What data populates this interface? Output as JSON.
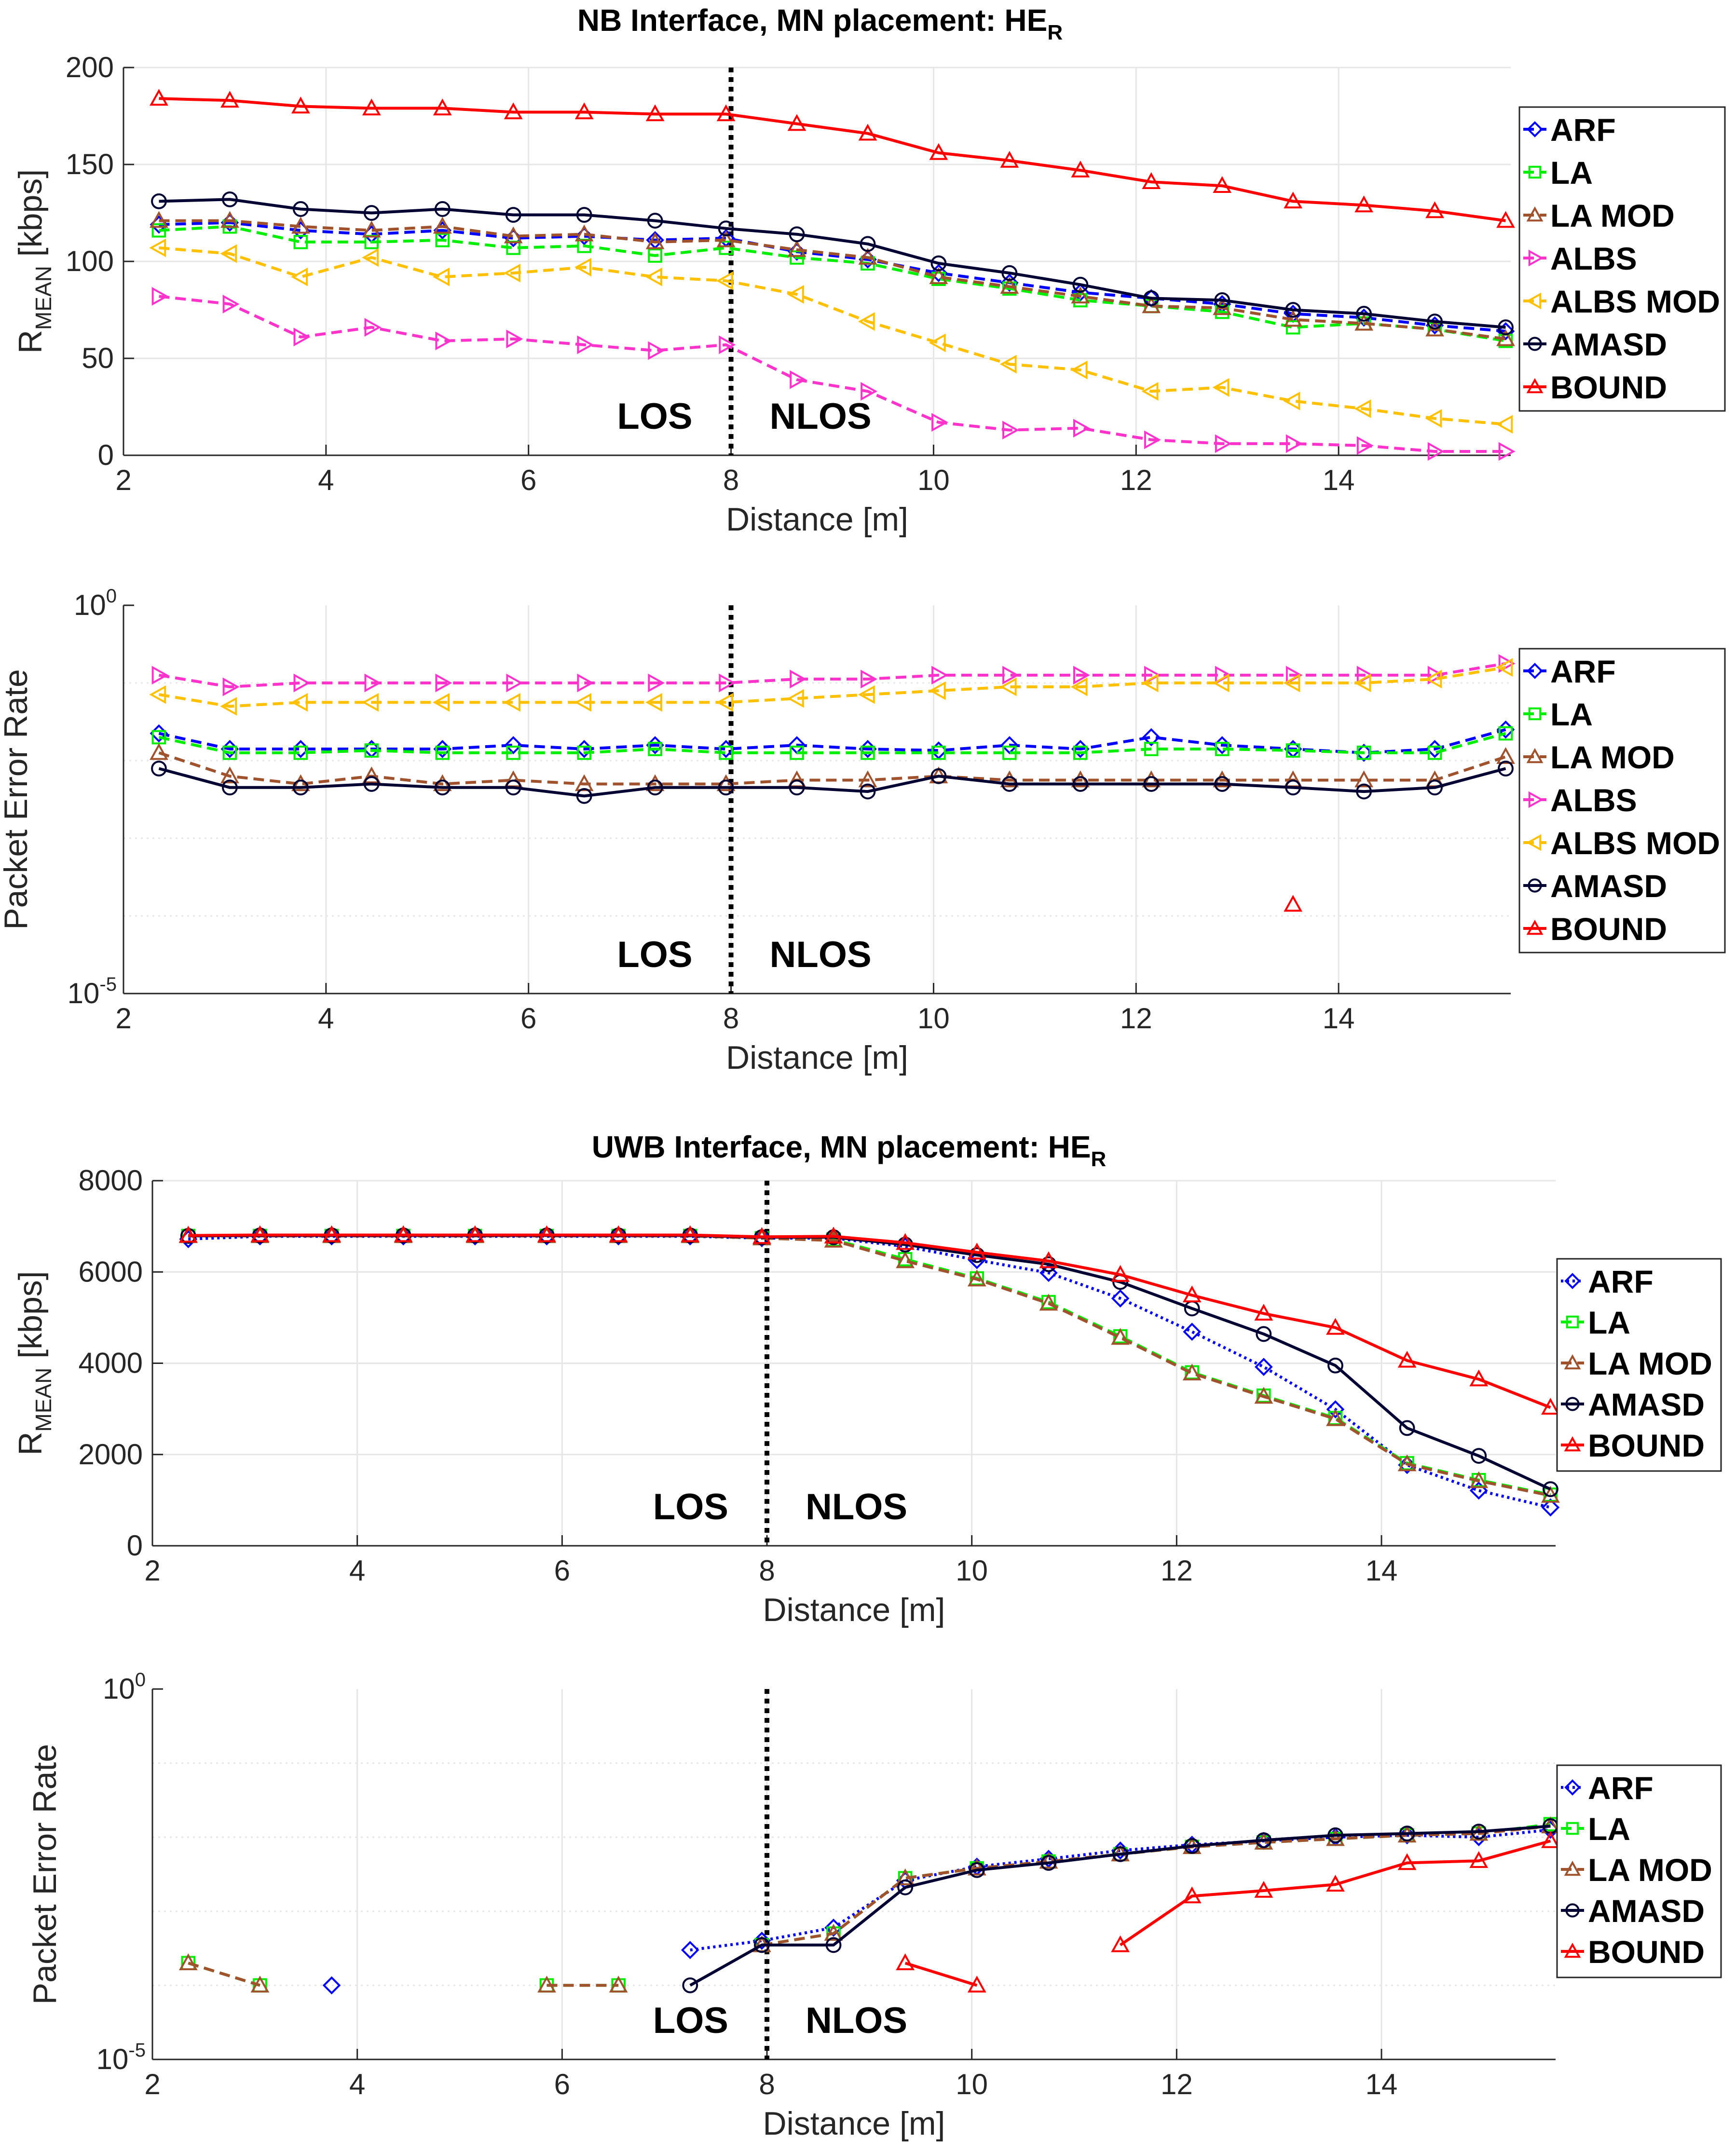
{
  "figure": {
    "nb_title": "NB Interface, MN placement: HE",
    "uwb_title": "UWB Interface, MN placement: HE",
    "title_subscript": "R"
  },
  "chart_data": [
    {
      "id": "nb_rate",
      "type": "line",
      "title": "NB Interface, MN placement: HE_R",
      "xlabel": "Distance [m]",
      "ylabel": "R",
      "ylabel_sub": "MEAN",
      "ylabel_unit": " [kbps]",
      "yscale": "linear",
      "xlim": [
        2,
        15.7
      ],
      "ylim": [
        0,
        200
      ],
      "xticks": [
        2,
        4,
        6,
        8,
        10,
        12,
        14
      ],
      "yticks": [
        0,
        50,
        100,
        150,
        200
      ],
      "xtick_labels": [
        "2",
        "4",
        "6",
        "8",
        "10",
        "12",
        "14"
      ],
      "ytick_labels": [
        "0",
        "50",
        "100",
        "150",
        "200"
      ],
      "annotations": [
        "LOS",
        "NLOS"
      ],
      "boundary_x": 8,
      "legend_position": "right",
      "x": [
        2.35,
        3.05,
        3.75,
        4.45,
        5.15,
        5.85,
        6.55,
        7.25,
        7.95,
        8.65,
        9.35,
        10.05,
        10.75,
        11.45,
        12.15,
        12.85,
        13.55,
        14.25,
        14.95,
        15.65
      ],
      "series": [
        {
          "name": "ARF",
          "color": "#0000ff",
          "marker": "diamond",
          "dash": "dashed",
          "values": [
            119,
            120,
            116,
            114,
            116,
            112,
            113,
            111,
            112,
            105,
            101,
            94,
            89,
            84,
            81,
            78,
            73,
            71,
            67,
            64
          ]
        },
        {
          "name": "LA",
          "color": "#00ee00",
          "marker": "square",
          "dash": "dashed",
          "values": [
            116,
            118,
            110,
            110,
            111,
            107,
            108,
            103,
            107,
            102,
            99,
            91,
            86,
            80,
            77,
            74,
            66,
            68,
            65,
            59
          ]
        },
        {
          "name": "LA MOD",
          "color": "#a0522d",
          "marker": "triangle-up",
          "dash": "dashed",
          "values": [
            121,
            121,
            118,
            116,
            118,
            113,
            114,
            110,
            111,
            106,
            102,
            92,
            87,
            82,
            77,
            76,
            70,
            68,
            65,
            60
          ]
        },
        {
          "name": "ALBS",
          "color": "#ff33cc",
          "marker": "triangle-right",
          "dash": "dashed",
          "values": [
            82,
            78,
            61,
            66,
            59,
            60,
            57,
            54,
            57,
            39,
            33,
            17,
            13,
            14,
            8,
            6,
            6,
            5,
            2,
            2
          ]
        },
        {
          "name": "ALBS MOD",
          "color": "#ffc000",
          "marker": "triangle-left",
          "dash": "dashed",
          "values": [
            107,
            104,
            92,
            102,
            92,
            94,
            97,
            92,
            90,
            83,
            69,
            58,
            47,
            44,
            33,
            35,
            28,
            24,
            19,
            16
          ]
        },
        {
          "name": "AMASD",
          "color": "#000033",
          "marker": "circle",
          "dash": "solid",
          "values": [
            131,
            132,
            127,
            125,
            127,
            124,
            124,
            121,
            117,
            114,
            109,
            99,
            94,
            88,
            81,
            80,
            75,
            73,
            69,
            66
          ]
        },
        {
          "name": "BOUND",
          "color": "#ff0000",
          "marker": "triangle-up",
          "dash": "solid",
          "values": [
            184,
            183,
            180,
            179,
            179,
            177,
            177,
            176,
            176,
            171,
            166,
            156,
            152,
            147,
            141,
            139,
            131,
            129,
            126,
            121
          ]
        }
      ]
    },
    {
      "id": "nb_per",
      "type": "line",
      "title": "",
      "xlabel": "Distance [m]",
      "ylabel": "Packet Error Rate",
      "yscale": "log",
      "xlim": [
        2,
        15.7
      ],
      "ylim": [
        1e-05,
        1
      ],
      "xticks": [
        2,
        4,
        6,
        8,
        10,
        12,
        14
      ],
      "xtick_labels": [
        "2",
        "4",
        "6",
        "8",
        "10",
        "12",
        "14"
      ],
      "ytick_labels": [
        {
          "base": "10",
          "exp": "0"
        },
        {
          "base": "10",
          "exp": "-5"
        }
      ],
      "annotations": [
        "LOS",
        "NLOS"
      ],
      "boundary_x": 8,
      "legend_position": "right",
      "x": [
        2.35,
        3.05,
        3.75,
        4.45,
        5.15,
        5.85,
        6.55,
        7.25,
        7.95,
        8.65,
        9.35,
        10.05,
        10.75,
        11.45,
        12.15,
        12.85,
        13.55,
        14.25,
        14.95,
        15.65
      ],
      "series": [
        {
          "name": "ARF",
          "color": "#0000ff",
          "marker": "diamond",
          "dash": "dashed",
          "values": [
            0.0224,
            0.0141,
            0.0141,
            0.0141,
            0.0141,
            0.0158,
            0.0141,
            0.0158,
            0.0141,
            0.0158,
            0.0141,
            0.0135,
            0.0158,
            0.0141,
            0.02,
            0.0158,
            0.0141,
            0.0126,
            0.0141,
            0.0251
          ]
        },
        {
          "name": "LA",
          "color": "#00ee00",
          "marker": "square",
          "dash": "dashed",
          "values": [
            0.02,
            0.0126,
            0.0126,
            0.0135,
            0.0126,
            0.0126,
            0.0126,
            0.0141,
            0.0126,
            0.0126,
            0.0126,
            0.0126,
            0.0126,
            0.0126,
            0.0141,
            0.0141,
            0.0135,
            0.0126,
            0.0126,
            0.0224
          ]
        },
        {
          "name": "LA MOD",
          "color": "#a0522d",
          "marker": "triangle-up",
          "dash": "dashed",
          "values": [
            0.0126,
            0.0063,
            0.005,
            0.0063,
            0.005,
            0.0056,
            0.005,
            0.005,
            0.005,
            0.0056,
            0.0056,
            0.0063,
            0.0056,
            0.0056,
            0.0056,
            0.0056,
            0.0056,
            0.0056,
            0.0056,
            0.0112
          ]
        },
        {
          "name": "ALBS",
          "color": "#ff33cc",
          "marker": "triangle-right",
          "dash": "dashed",
          "values": [
            0.1259,
            0.0891,
            0.1,
            0.1,
            0.1,
            0.1,
            0.1,
            0.1,
            0.1,
            0.1122,
            0.1122,
            0.1259,
            0.1259,
            0.1259,
            0.1259,
            0.1259,
            0.1259,
            0.1259,
            0.1259,
            0.1778
          ]
        },
        {
          "name": "ALBS MOD",
          "color": "#ffc000",
          "marker": "triangle-left",
          "dash": "dashed",
          "values": [
            0.0708,
            0.05,
            0.0562,
            0.0562,
            0.0562,
            0.0562,
            0.0562,
            0.0562,
            0.0562,
            0.0631,
            0.0708,
            0.0794,
            0.0891,
            0.0891,
            0.1,
            0.1,
            0.1,
            0.1,
            0.1122,
            0.1585
          ]
        },
        {
          "name": "AMASD",
          "color": "#000033",
          "marker": "circle",
          "dash": "solid",
          "values": [
            0.0079,
            0.0045,
            0.0045,
            0.005,
            0.0045,
            0.0045,
            0.0035,
            0.0045,
            0.0045,
            0.0045,
            0.004,
            0.0063,
            0.005,
            0.005,
            0.005,
            0.005,
            0.0045,
            0.004,
            0.0045,
            0.0079
          ]
        },
        {
          "name": "BOUND",
          "color": "#ff0000",
          "marker": "triangle-up",
          "dash": "solid",
          "values": [
            null,
            null,
            null,
            null,
            null,
            null,
            null,
            null,
            null,
            null,
            null,
            null,
            null,
            null,
            null,
            null,
            0.00014,
            null,
            null,
            null
          ]
        }
      ]
    },
    {
      "id": "uwb_rate",
      "type": "line",
      "title": "UWB Interface, MN placement: HE_R",
      "xlabel": "Distance [m]",
      "ylabel": "R",
      "ylabel_sub": "MEAN",
      "ylabel_unit": " [kbps]",
      "yscale": "linear",
      "xlim": [
        2,
        15.7
      ],
      "ylim": [
        0,
        8000
      ],
      "xticks": [
        2,
        4,
        6,
        8,
        10,
        12,
        14
      ],
      "yticks": [
        0,
        2000,
        4000,
        6000,
        8000
      ],
      "xtick_labels": [
        "2",
        "4",
        "6",
        "8",
        "10",
        "12",
        "14"
      ],
      "ytick_labels": [
        "0",
        "2000",
        "4000",
        "6000",
        "8000"
      ],
      "annotations": [
        "LOS",
        "NLOS"
      ],
      "boundary_x": 8,
      "legend_position": "right",
      "x": [
        2.35,
        3.05,
        3.75,
        4.45,
        5.15,
        5.85,
        6.55,
        7.25,
        7.95,
        8.65,
        9.35,
        10.05,
        10.75,
        11.45,
        12.15,
        12.85,
        13.55,
        14.25,
        14.95,
        15.65
      ],
      "series": [
        {
          "name": "ARF",
          "color": "#0000ff",
          "marker": "diamond",
          "dash": "dotted",
          "values": [
            6720,
            6780,
            6780,
            6780,
            6780,
            6780,
            6780,
            6780,
            6740,
            6740,
            6560,
            6260,
            5980,
            5420,
            4690,
            3920,
            2990,
            1770,
            1210,
            840
          ]
        },
        {
          "name": "LA",
          "color": "#00ee00",
          "marker": "square",
          "dash": "dashed",
          "values": [
            6790,
            6790,
            6790,
            6790,
            6790,
            6790,
            6790,
            6790,
            6740,
            6710,
            6280,
            5860,
            5340,
            4590,
            3800,
            3290,
            2800,
            1810,
            1440,
            1120
          ]
        },
        {
          "name": "LA MOD",
          "color": "#a0522d",
          "marker": "triangle-up",
          "dash": "dashed",
          "values": [
            6790,
            6790,
            6790,
            6790,
            6790,
            6790,
            6790,
            6790,
            6740,
            6690,
            6240,
            5840,
            5310,
            4560,
            3780,
            3270,
            2780,
            1790,
            1420,
            1100
          ]
        },
        {
          "name": "AMASD",
          "color": "#000033",
          "marker": "circle",
          "dash": "solid",
          "values": [
            6790,
            6800,
            6800,
            6800,
            6800,
            6800,
            6800,
            6800,
            6760,
            6760,
            6600,
            6370,
            6170,
            5780,
            5200,
            4640,
            3950,
            2580,
            1970,
            1240
          ]
        },
        {
          "name": "BOUND",
          "color": "#ff0000",
          "marker": "triangle-up",
          "dash": "solid",
          "values": [
            6800,
            6810,
            6810,
            6810,
            6810,
            6810,
            6810,
            6810,
            6770,
            6780,
            6640,
            6430,
            6240,
            5940,
            5490,
            5090,
            4780,
            4060,
            3650,
            3030
          ]
        }
      ]
    },
    {
      "id": "uwb_per",
      "type": "line",
      "title": "",
      "xlabel": "Distance [m]",
      "ylabel": "Packet Error Rate",
      "yscale": "log",
      "xlim": [
        2,
        15.7
      ],
      "ylim": [
        1e-05,
        1
      ],
      "xticks": [
        2,
        4,
        6,
        8,
        10,
        12,
        14
      ],
      "xtick_labels": [
        "2",
        "4",
        "6",
        "8",
        "10",
        "12",
        "14"
      ],
      "ytick_labels": [
        {
          "base": "10",
          "exp": "0"
        },
        {
          "base": "10",
          "exp": "-5"
        }
      ],
      "annotations": [
        "LOS",
        "NLOS"
      ],
      "boundary_x": 8,
      "legend_position": "right",
      "x": [
        2.35,
        3.05,
        3.75,
        4.45,
        5.15,
        5.85,
        6.55,
        7.25,
        7.95,
        8.65,
        9.35,
        10.05,
        10.75,
        11.45,
        12.15,
        12.85,
        13.55,
        14.25,
        14.95,
        15.65
      ],
      "series": [
        {
          "name": "ARF",
          "color": "#0000ff",
          "marker": "diamond",
          "dash": "dotted",
          "values": [
            null,
            null,
            0.0001,
            null,
            null,
            null,
            null,
            0.0003,
            0.0004,
            0.0006,
            0.0026,
            0.004,
            0.0051,
            0.0066,
            0.0079,
            0.0089,
            0.01,
            0.0106,
            0.01,
            0.0126
          ]
        },
        {
          "name": "LA",
          "color": "#00ee00",
          "marker": "square",
          "dash": "dashed",
          "values": [
            0.0002,
            0.0001,
            null,
            null,
            null,
            0.0001,
            0.0001,
            null,
            0.00035,
            0.0005,
            0.0028,
            0.0038,
            0.0047,
            0.0059,
            0.0074,
            0.0085,
            0.0095,
            0.0106,
            0.0112,
            0.015
          ]
        },
        {
          "name": "LA MOD",
          "color": "#a0522d",
          "marker": "triangle-up",
          "dash": "dashed",
          "values": [
            0.0002,
            0.0001,
            null,
            null,
            null,
            0.0001,
            0.0001,
            null,
            0.00035,
            0.0005,
            0.0028,
            0.0038,
            0.0047,
            0.0059,
            0.0074,
            0.0085,
            0.0095,
            0.0106,
            0.0112,
            0.0141
          ]
        },
        {
          "name": "AMASD",
          "color": "#000033",
          "marker": "circle",
          "dash": "solid",
          "values": [
            null,
            null,
            null,
            null,
            null,
            null,
            null,
            0.0001,
            0.00035,
            0.00035,
            0.0021,
            0.0036,
            0.0045,
            0.0059,
            0.0076,
            0.0091,
            0.0106,
            0.0112,
            0.0119,
            0.0141
          ]
        },
        {
          "name": "BOUND",
          "color": "#ff0000",
          "marker": "triangle-up",
          "dash": "solid",
          "values": [
            null,
            null,
            null,
            null,
            null,
            null,
            null,
            null,
            null,
            null,
            0.0002,
            0.0001,
            null,
            0.00035,
            0.0016,
            0.0019,
            0.0023,
            0.0045,
            0.0048,
            0.0089
          ]
        }
      ]
    }
  ]
}
